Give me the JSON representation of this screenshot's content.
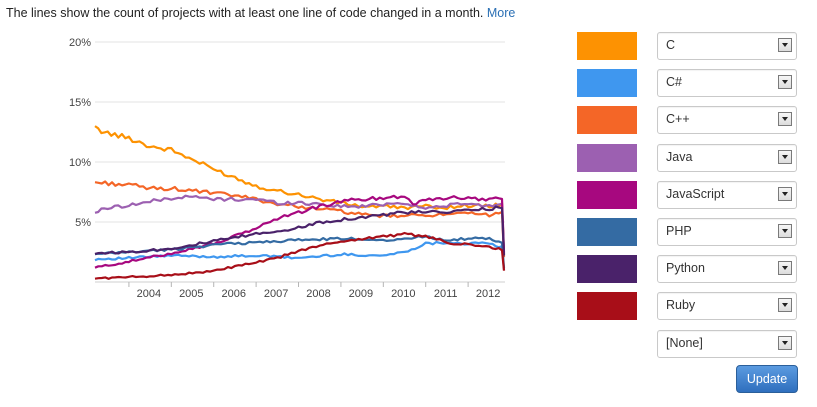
{
  "caption": {
    "text": "The lines show the count of projects with at least one line of code changed in a month. ",
    "more_link": "More"
  },
  "controls": [
    {
      "label": "C",
      "color": "#fd9202"
    },
    {
      "label": "C#",
      "color": "#3f97ef"
    },
    {
      "label": "C++",
      "color": "#f46627"
    },
    {
      "label": "Java",
      "color": "#9c60b1"
    },
    {
      "label": "JavaScript",
      "color": "#a7087f"
    },
    {
      "label": "PHP",
      "color": "#346ba3"
    },
    {
      "label": "Python",
      "color": "#4a226a"
    },
    {
      "label": "Ruby",
      "color": "#a80e18"
    },
    {
      "label": "[None]",
      "color": null
    }
  ],
  "update_button": "Update",
  "chart_data": {
    "type": "line",
    "x_range": [
      "2003-03",
      "2012-12"
    ],
    "xticks": [
      "2004",
      "2005",
      "2006",
      "2007",
      "2008",
      "2009",
      "2010",
      "2011",
      "2012"
    ],
    "yticks": [
      "20%",
      "15%",
      "10%",
      "5%"
    ],
    "ylim": [
      0,
      20
    ],
    "grid": true,
    "series": [
      {
        "name": "C",
        "color": "#fd9202",
        "points": [
          [
            2003.2,
            12.8
          ],
          [
            2003.5,
            12.4
          ],
          [
            2004.0,
            12.0
          ],
          [
            2004.5,
            11.3
          ],
          [
            2005.0,
            11.0
          ],
          [
            2005.5,
            10.2
          ],
          [
            2006.0,
            9.4
          ],
          [
            2006.5,
            8.7
          ],
          [
            2007.0,
            8.0
          ],
          [
            2007.5,
            7.6
          ],
          [
            2008.0,
            7.3
          ],
          [
            2008.5,
            6.9
          ],
          [
            2009.0,
            6.6
          ],
          [
            2009.5,
            6.3
          ],
          [
            2010.0,
            6.3
          ],
          [
            2010.5,
            6.2
          ],
          [
            2011.0,
            6.3
          ],
          [
            2011.5,
            6.2
          ],
          [
            2012.0,
            6.4
          ],
          [
            2012.5,
            6.3
          ],
          [
            2012.8,
            6.5
          ]
        ]
      },
      {
        "name": "C#",
        "color": "#3f97ef",
        "points": [
          [
            2003.2,
            1.9
          ],
          [
            2004.0,
            2.0
          ],
          [
            2005.0,
            2.2
          ],
          [
            2006.0,
            2.1
          ],
          [
            2007.0,
            2.2
          ],
          [
            2008.0,
            2.0
          ],
          [
            2009.0,
            2.3
          ],
          [
            2010.0,
            2.2
          ],
          [
            2010.5,
            2.5
          ],
          [
            2011.0,
            3.2
          ],
          [
            2011.5,
            3.3
          ],
          [
            2012.0,
            3.2
          ],
          [
            2012.5,
            3.2
          ],
          [
            2012.8,
            2.9
          ]
        ]
      },
      {
        "name": "C++",
        "color": "#f46627",
        "points": [
          [
            2003.2,
            8.3
          ],
          [
            2004.0,
            8.1
          ],
          [
            2004.5,
            7.8
          ],
          [
            2005.0,
            7.8
          ],
          [
            2005.5,
            7.6
          ],
          [
            2006.0,
            7.4
          ],
          [
            2006.5,
            7.2
          ],
          [
            2007.0,
            6.9
          ],
          [
            2007.5,
            6.5
          ],
          [
            2008.0,
            6.3
          ],
          [
            2008.5,
            6.1
          ],
          [
            2009.0,
            5.9
          ],
          [
            2009.5,
            5.6
          ],
          [
            2010.0,
            5.5
          ],
          [
            2010.5,
            5.5
          ],
          [
            2011.0,
            5.6
          ],
          [
            2011.5,
            5.6
          ],
          [
            2012.0,
            5.7
          ],
          [
            2012.5,
            5.6
          ],
          [
            2012.8,
            5.9
          ]
        ]
      },
      {
        "name": "Java",
        "color": "#9c60b1",
        "points": [
          [
            2003.2,
            5.8
          ],
          [
            2003.5,
            6.2
          ],
          [
            2004.0,
            6.4
          ],
          [
            2004.5,
            6.7
          ],
          [
            2005.0,
            7.0
          ],
          [
            2005.5,
            7.1
          ],
          [
            2006.0,
            6.9
          ],
          [
            2006.5,
            6.9
          ],
          [
            2007.0,
            6.9
          ],
          [
            2007.5,
            6.6
          ],
          [
            2008.0,
            6.6
          ],
          [
            2008.5,
            6.5
          ],
          [
            2009.0,
            6.3
          ],
          [
            2009.5,
            6.3
          ],
          [
            2010.0,
            6.5
          ],
          [
            2010.5,
            6.6
          ],
          [
            2011.0,
            6.1
          ],
          [
            2011.5,
            6.4
          ],
          [
            2012.0,
            6.5
          ],
          [
            2012.5,
            6.3
          ],
          [
            2012.8,
            6.6
          ]
        ]
      },
      {
        "name": "JavaScript",
        "color": "#a7087f",
        "points": [
          [
            2003.2,
            1.2
          ],
          [
            2004.0,
            1.7
          ],
          [
            2005.0,
            2.4
          ],
          [
            2005.5,
            2.8
          ],
          [
            2006.0,
            3.2
          ],
          [
            2006.5,
            3.8
          ],
          [
            2007.0,
            4.5
          ],
          [
            2007.5,
            5.3
          ],
          [
            2008.0,
            5.8
          ],
          [
            2008.5,
            6.3
          ],
          [
            2009.0,
            6.7
          ],
          [
            2009.5,
            6.9
          ],
          [
            2010.0,
            7.0
          ],
          [
            2010.5,
            7.2
          ],
          [
            2010.7,
            6.5
          ],
          [
            2011.0,
            6.9
          ],
          [
            2011.5,
            7.0
          ],
          [
            2012.0,
            7.0
          ],
          [
            2012.5,
            6.9
          ],
          [
            2012.8,
            7.0
          ]
        ]
      },
      {
        "name": "PHP",
        "color": "#346ba3",
        "points": [
          [
            2003.2,
            2.3
          ],
          [
            2004.0,
            2.5
          ],
          [
            2005.0,
            2.7
          ],
          [
            2006.0,
            3.1
          ],
          [
            2007.0,
            3.3
          ],
          [
            2008.0,
            3.5
          ],
          [
            2009.0,
            3.6
          ],
          [
            2009.5,
            3.6
          ],
          [
            2010.0,
            3.5
          ],
          [
            2010.5,
            3.6
          ],
          [
            2011.0,
            3.8
          ],
          [
            2011.5,
            3.5
          ],
          [
            2012.0,
            3.6
          ],
          [
            2012.5,
            3.6
          ],
          [
            2012.8,
            3.3
          ]
        ]
      },
      {
        "name": "Python",
        "color": "#4a226a",
        "points": [
          [
            2003.2,
            2.4
          ],
          [
            2004.0,
            2.5
          ],
          [
            2005.0,
            2.8
          ],
          [
            2006.0,
            3.4
          ],
          [
            2007.0,
            4.0
          ],
          [
            2008.0,
            4.5
          ],
          [
            2008.5,
            5.0
          ],
          [
            2009.0,
            5.2
          ],
          [
            2009.5,
            5.4
          ],
          [
            2010.0,
            5.6
          ],
          [
            2010.5,
            5.8
          ],
          [
            2011.0,
            5.8
          ],
          [
            2011.5,
            5.8
          ],
          [
            2012.0,
            6.0
          ],
          [
            2012.5,
            6.1
          ],
          [
            2012.8,
            6.3
          ]
        ]
      },
      {
        "name": "Ruby",
        "color": "#a80e18",
        "points": [
          [
            2003.2,
            0.3
          ],
          [
            2004.0,
            0.4
          ],
          [
            2005.0,
            0.6
          ],
          [
            2006.0,
            0.9
          ],
          [
            2006.5,
            1.3
          ],
          [
            2007.0,
            1.6
          ],
          [
            2007.5,
            2.0
          ],
          [
            2008.0,
            2.6
          ],
          [
            2008.5,
            3.0
          ],
          [
            2009.0,
            3.4
          ],
          [
            2009.5,
            3.6
          ],
          [
            2010.0,
            3.8
          ],
          [
            2010.5,
            4.0
          ],
          [
            2011.0,
            3.8
          ],
          [
            2011.5,
            3.3
          ],
          [
            2012.0,
            3.1
          ],
          [
            2012.5,
            2.9
          ],
          [
            2012.8,
            2.7
          ]
        ]
      }
    ]
  }
}
